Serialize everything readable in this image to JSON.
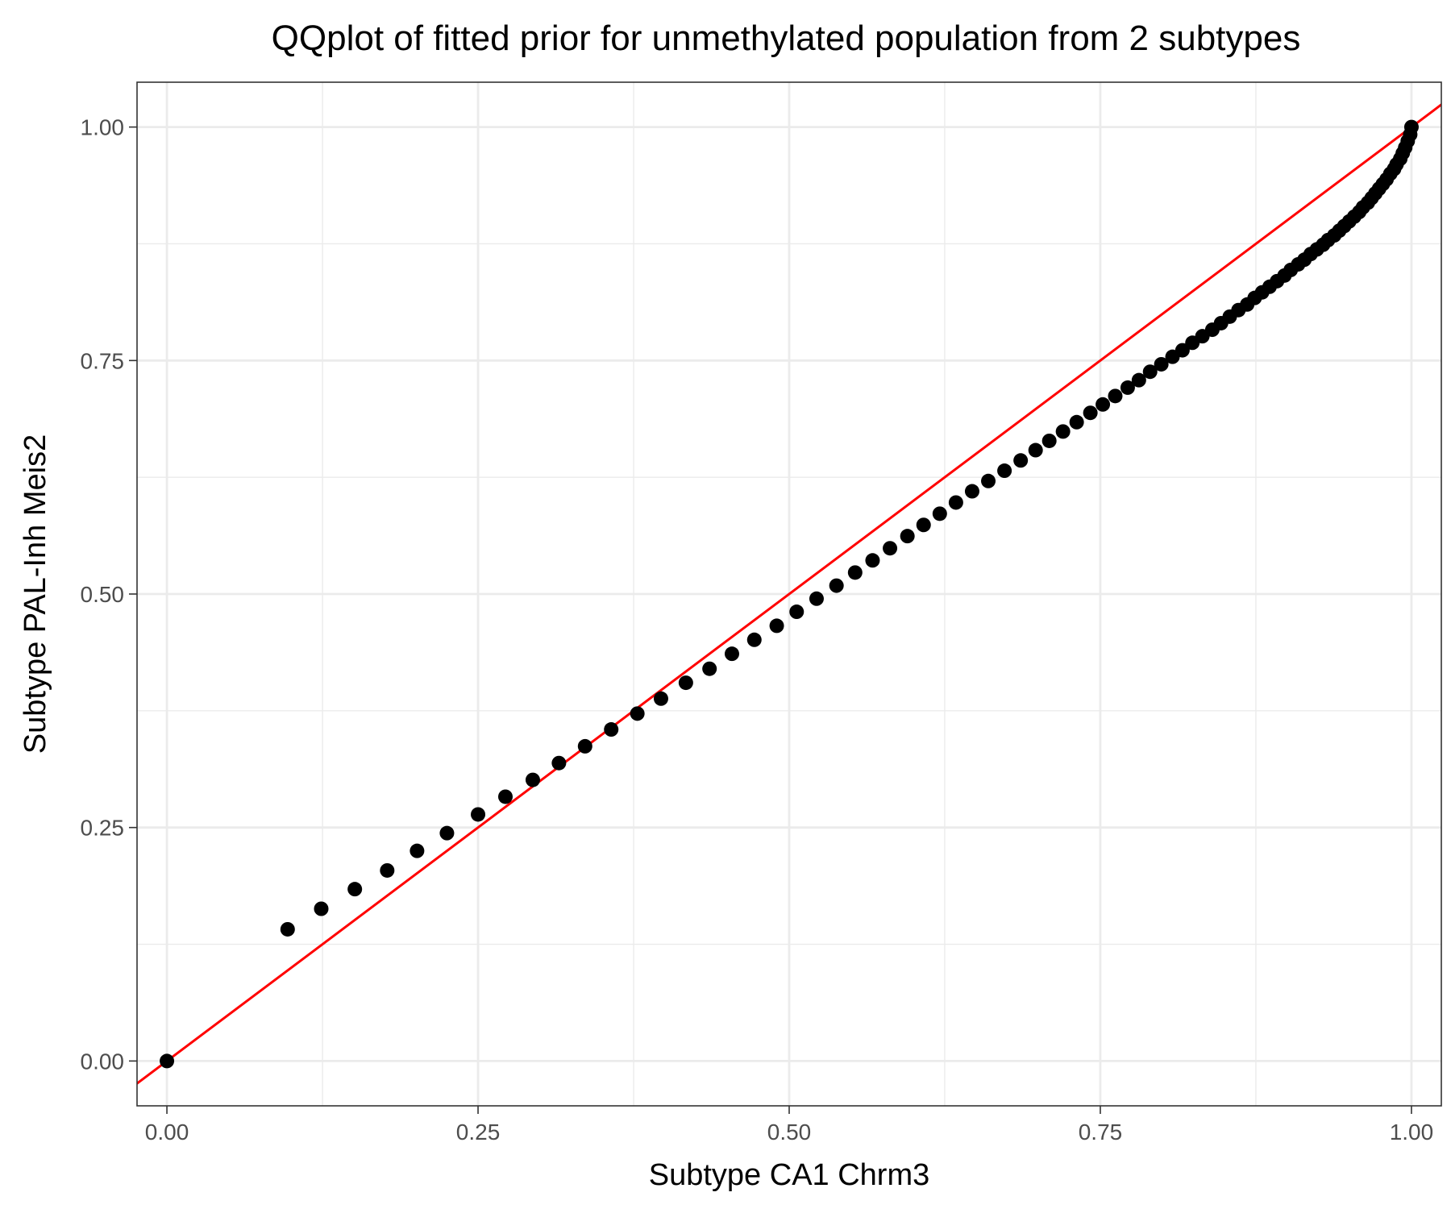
{
  "chart_data": {
    "type": "scatter",
    "title": "QQplot of fitted prior for unmethylated population from 2 subtypes",
    "xlabel": "Subtype CA1 Chrm3",
    "ylabel": "Subtype PAL-Inh Meis2",
    "xlim": [
      -0.024,
      1.024
    ],
    "ylim": [
      -0.048,
      1.048
    ],
    "x_ticks": [
      "0.00",
      "0.25",
      "0.50",
      "0.75",
      "1.00"
    ],
    "y_ticks": [
      "0.00",
      "0.25",
      "0.50",
      "0.75",
      "1.00"
    ],
    "grid": true,
    "legend": "none",
    "reference_line": {
      "slope": 1,
      "intercept": 0,
      "color": "#ff0000"
    },
    "point_color": "#000000",
    "points": [
      [
        0.0,
        0.0
      ],
      [
        0.097,
        0.141
      ],
      [
        0.124,
        0.163
      ],
      [
        0.151,
        0.184
      ],
      [
        0.177,
        0.204
      ],
      [
        0.201,
        0.225
      ],
      [
        0.225,
        0.244
      ],
      [
        0.25,
        0.264
      ],
      [
        0.272,
        0.283
      ],
      [
        0.294,
        0.301
      ],
      [
        0.315,
        0.319
      ],
      [
        0.336,
        0.337
      ],
      [
        0.357,
        0.355
      ],
      [
        0.378,
        0.372
      ],
      [
        0.397,
        0.388
      ],
      [
        0.417,
        0.405
      ],
      [
        0.436,
        0.42
      ],
      [
        0.454,
        0.436
      ],
      [
        0.472,
        0.451
      ],
      [
        0.49,
        0.466
      ],
      [
        0.506,
        0.481
      ],
      [
        0.522,
        0.495
      ],
      [
        0.538,
        0.509
      ],
      [
        0.553,
        0.523
      ],
      [
        0.567,
        0.536
      ],
      [
        0.581,
        0.549
      ],
      [
        0.595,
        0.562
      ],
      [
        0.608,
        0.574
      ],
      [
        0.621,
        0.586
      ],
      [
        0.634,
        0.598
      ],
      [
        0.647,
        0.61
      ],
      [
        0.66,
        0.621
      ],
      [
        0.673,
        0.632
      ],
      [
        0.686,
        0.643
      ],
      [
        0.698,
        0.654
      ],
      [
        0.709,
        0.664
      ],
      [
        0.72,
        0.674
      ],
      [
        0.731,
        0.684
      ],
      [
        0.742,
        0.694
      ],
      [
        0.752,
        0.703
      ],
      [
        0.762,
        0.712
      ],
      [
        0.772,
        0.721
      ],
      [
        0.781,
        0.729
      ],
      [
        0.79,
        0.738
      ],
      [
        0.799,
        0.746
      ],
      [
        0.808,
        0.754
      ],
      [
        0.816,
        0.761
      ],
      [
        0.824,
        0.769
      ],
      [
        0.832,
        0.776
      ],
      [
        0.84,
        0.783
      ],
      [
        0.847,
        0.79
      ],
      [
        0.854,
        0.797
      ],
      [
        0.861,
        0.804
      ],
      [
        0.868,
        0.81
      ],
      [
        0.874,
        0.817
      ],
      [
        0.88,
        0.823
      ],
      [
        0.886,
        0.829
      ],
      [
        0.892,
        0.835
      ],
      [
        0.898,
        0.841
      ],
      [
        0.903,
        0.847
      ],
      [
        0.909,
        0.853
      ],
      [
        0.914,
        0.858
      ],
      [
        0.919,
        0.864
      ],
      [
        0.924,
        0.869
      ],
      [
        0.929,
        0.874
      ],
      [
        0.933,
        0.879
      ],
      [
        0.938,
        0.884
      ],
      [
        0.942,
        0.889
      ],
      [
        0.946,
        0.894
      ],
      [
        0.95,
        0.899
      ],
      [
        0.954,
        0.904
      ],
      [
        0.958,
        0.909
      ],
      [
        0.961,
        0.914
      ],
      [
        0.965,
        0.919
      ],
      [
        0.968,
        0.924
      ],
      [
        0.971,
        0.929
      ],
      [
        0.974,
        0.934
      ],
      [
        0.977,
        0.939
      ],
      [
        0.98,
        0.944
      ],
      [
        0.983,
        0.95
      ],
      [
        0.986,
        0.955
      ],
      [
        0.988,
        0.96
      ],
      [
        0.991,
        0.966
      ],
      [
        0.993,
        0.972
      ],
      [
        0.995,
        0.978
      ],
      [
        0.997,
        0.985
      ],
      [
        0.999,
        0.992
      ],
      [
        1.0,
        1.0
      ]
    ]
  }
}
